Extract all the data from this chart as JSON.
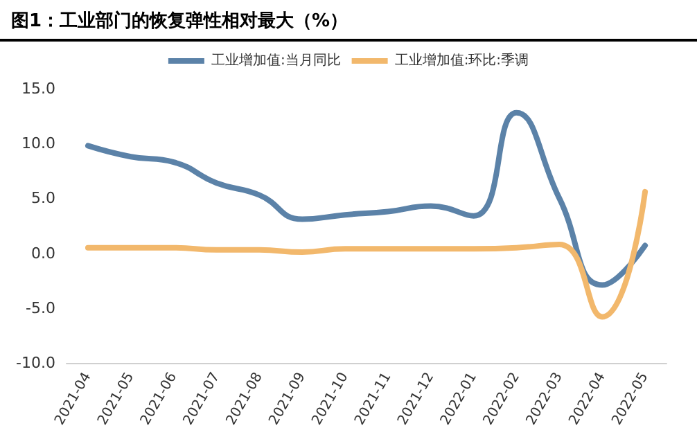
{
  "chart_data": {
    "type": "line",
    "title": "图1：工业部门的恢复弹性相对最大（%）",
    "categories": [
      "2021-04",
      "2021-05",
      "2021-06",
      "2021-07",
      "2021-08",
      "2021-09",
      "2021-10",
      "2021-11",
      "2021-12",
      "2022-01",
      "2022-02",
      "2022-03",
      "2022-04",
      "2022-05"
    ],
    "series": [
      {
        "name": "工业增加值:当月同比",
        "color": "#5b82a8",
        "values": [
          9.8,
          8.8,
          8.3,
          6.4,
          5.3,
          3.1,
          3.5,
          3.8,
          4.3,
          3.4,
          12.8,
          5.0,
          -2.9,
          0.7
        ]
      },
      {
        "name": "工业增加值:环比:季调",
        "color": "#f2b86c",
        "values": [
          0.5,
          0.5,
          0.5,
          0.3,
          0.3,
          0.1,
          0.4,
          0.4,
          0.4,
          0.4,
          0.5,
          0.8,
          -5.8,
          5.6
        ]
      }
    ],
    "ylim": [
      -10,
      15
    ],
    "yticks": [
      {
        "value": -10,
        "label": "-10.0"
      },
      {
        "value": -5,
        "label": "-5.0"
      },
      {
        "value": 0,
        "label": "0.0"
      },
      {
        "value": 5,
        "label": "5.0"
      },
      {
        "value": 10,
        "label": "10.0"
      },
      {
        "value": 15,
        "label": "15.0"
      }
    ],
    "grid": false,
    "legend": "top",
    "marker": "none",
    "line_style": "solid"
  }
}
